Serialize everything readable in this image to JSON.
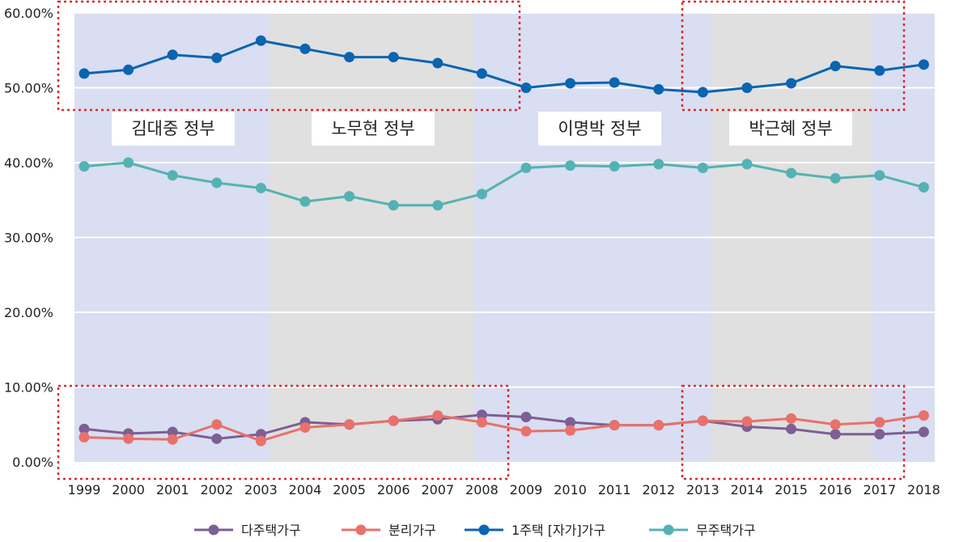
{
  "chart_data": {
    "type": "line",
    "x": [
      "1999",
      "2000",
      "2001",
      "2002",
      "2003",
      "2004",
      "2005",
      "2006",
      "2007",
      "2008",
      "2009",
      "2010",
      "2011",
      "2012",
      "2013",
      "2014",
      "2015",
      "2016",
      "2017",
      "2018"
    ],
    "ylim": [
      0,
      60
    ],
    "y_ticks": [
      "0.00%",
      "10.00%",
      "20.00%",
      "30.00%",
      "40.00%",
      "50.00%",
      "60.00%"
    ],
    "grid": true,
    "legend_position": "bottom",
    "periods": [
      {
        "label": "김대중 정부",
        "from": "1999",
        "to": "2003",
        "color": "#d9def2"
      },
      {
        "label": "노무현 정부",
        "from": "2003",
        "to": "2008",
        "color": "#e0e0e0"
      },
      {
        "label": "이명박 정부",
        "from": "2008",
        "to": "2013",
        "color": "#d9def2"
      },
      {
        "label": "박근혜 정부",
        "from": "2013",
        "to": "2017",
        "color": "#e0e0e0"
      }
    ],
    "series": [
      {
        "name": "다주택가구",
        "color": "#7d5f94",
        "values": [
          4.4,
          3.8,
          4.0,
          3.1,
          3.7,
          5.3,
          5.0,
          5.5,
          5.7,
          6.3,
          6.0,
          5.3,
          4.9,
          4.9,
          5.5,
          4.7,
          4.4,
          3.7,
          3.7,
          4.0
        ]
      },
      {
        "name": "분리가구",
        "color": "#e8716b",
        "values": [
          3.3,
          3.1,
          3.0,
          5.0,
          2.8,
          4.6,
          5.0,
          5.5,
          6.2,
          5.3,
          4.1,
          4.2,
          4.9,
          4.9,
          5.5,
          5.4,
          5.8,
          5.0,
          5.3,
          6.2
        ]
      },
      {
        "name": "1주택 [자가]가구",
        "color": "#0b64b0",
        "values": [
          51.9,
          52.4,
          54.4,
          54.0,
          56.3,
          55.2,
          54.1,
          54.1,
          53.3,
          51.9,
          50.0,
          50.6,
          50.7,
          49.8,
          49.4,
          50.0,
          50.6,
          52.9,
          52.3,
          53.1
        ]
      },
      {
        "name": "무주택가구",
        "color": "#55b2b2",
        "values": [
          39.5,
          40.0,
          38.3,
          37.3,
          36.6,
          34.8,
          35.5,
          34.3,
          34.3,
          35.8,
          39.3,
          39.6,
          39.5,
          39.8,
          39.3,
          39.8,
          38.6,
          37.9,
          38.3,
          36.7
        ]
      }
    ]
  }
}
